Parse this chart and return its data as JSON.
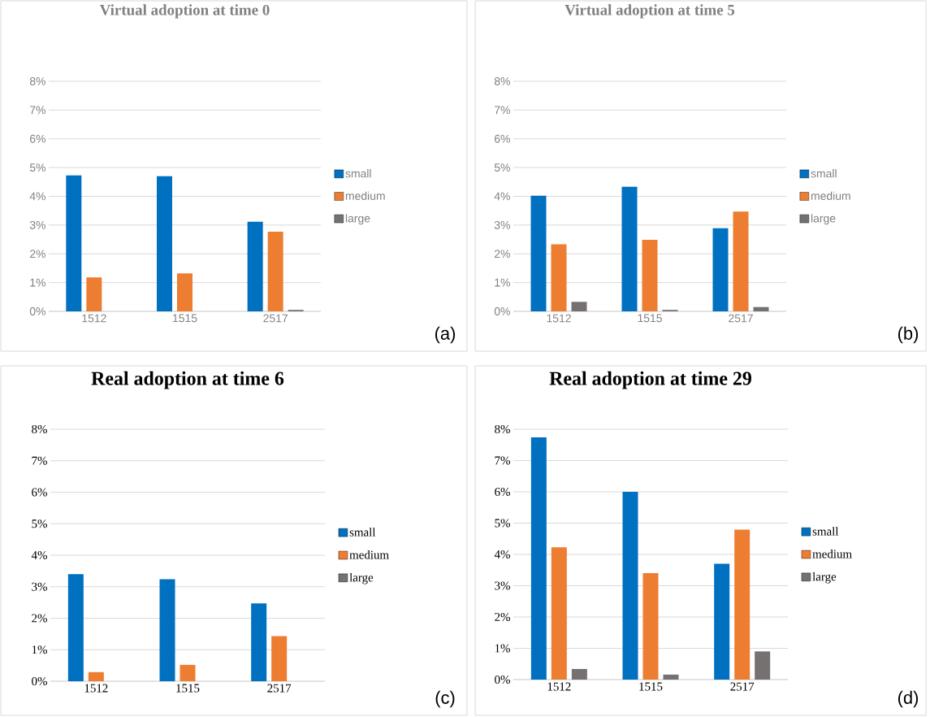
{
  "chart_data": [
    {
      "type": "bar",
      "title": "Virtual adoption at time 0",
      "categories": [
        "1512",
        "1515",
        "2517"
      ],
      "series": [
        {
          "name": "small",
          "color": "#0070c0",
          "values": [
            4.73,
            4.7,
            3.12
          ]
        },
        {
          "name": "medium",
          "color": "#ed7d31",
          "values": [
            1.18,
            1.32,
            2.77
          ]
        },
        {
          "name": "large",
          "color": "#767171",
          "values": [
            0,
            0,
            0.05
          ]
        }
      ],
      "ylim": [
        0,
        8
      ],
      "yticks": [
        {
          "value": 0,
          "label": "0%"
        },
        {
          "value": 1,
          "label": "1%"
        },
        {
          "value": 2,
          "label": "2%"
        },
        {
          "value": 3,
          "label": "3%"
        },
        {
          "value": 4,
          "label": "4%"
        },
        {
          "value": 5,
          "label": "5%"
        },
        {
          "value": 6,
          "label": "6%"
        },
        {
          "value": 7,
          "label": "7%"
        },
        {
          "value": 8,
          "label": "8%"
        }
      ],
      "grid": "y",
      "legend": "right",
      "annotations": [
        "(a)"
      ]
    },
    {
      "type": "bar",
      "title": "Virtual adoption at time 5",
      "categories": [
        "1512",
        "1515",
        "2517"
      ],
      "series": [
        {
          "name": "small",
          "color": "#0070c0",
          "values": [
            4.02,
            4.33,
            2.89
          ]
        },
        {
          "name": "medium",
          "color": "#ed7d31",
          "values": [
            2.33,
            2.49,
            3.47
          ]
        },
        {
          "name": "large",
          "color": "#767171",
          "values": [
            0.33,
            0.05,
            0.15
          ]
        }
      ],
      "ylim": [
        0,
        8
      ],
      "yticks": [
        {
          "value": 0,
          "label": "0%"
        },
        {
          "value": 1,
          "label": "1%"
        },
        {
          "value": 2,
          "label": "2%"
        },
        {
          "value": 3,
          "label": "3%"
        },
        {
          "value": 4,
          "label": "4%"
        },
        {
          "value": 5,
          "label": "5%"
        },
        {
          "value": 6,
          "label": "6%"
        },
        {
          "value": 7,
          "label": "7%"
        },
        {
          "value": 8,
          "label": "8%"
        }
      ],
      "grid": "y",
      "legend": "right",
      "annotations": [
        "(b)"
      ]
    },
    {
      "type": "bar",
      "title": "Real adoption at time 6",
      "categories": [
        "1512",
        "1515",
        "2517"
      ],
      "series": [
        {
          "name": "small",
          "color": "#0070c0",
          "values": [
            3.4,
            3.24,
            2.47
          ]
        },
        {
          "name": "medium",
          "color": "#ed7d31",
          "values": [
            0.29,
            0.52,
            1.43
          ]
        },
        {
          "name": "large",
          "color": "#767171",
          "values": [
            0,
            0,
            0
          ]
        }
      ],
      "ylim": [
        0,
        8
      ],
      "yticks": [
        {
          "value": 0,
          "label": "0%"
        },
        {
          "value": 1,
          "label": "1%"
        },
        {
          "value": 2,
          "label": "2%"
        },
        {
          "value": 3,
          "label": "3%"
        },
        {
          "value": 4,
          "label": "4%"
        },
        {
          "value": 5,
          "label": "5%"
        },
        {
          "value": 6,
          "label": "6%"
        },
        {
          "value": 7,
          "label": "7%"
        },
        {
          "value": 8,
          "label": "8%"
        }
      ],
      "grid": "y",
      "legend": "right",
      "annotations": [
        "(c)"
      ]
    },
    {
      "type": "bar",
      "title": "Real adoption at time 29",
      "categories": [
        "1512",
        "1515",
        "2517"
      ],
      "series": [
        {
          "name": "small",
          "color": "#0070c0",
          "values": [
            7.74,
            6.0,
            3.7
          ]
        },
        {
          "name": "medium",
          "color": "#ed7d31",
          "values": [
            4.23,
            3.4,
            4.79
          ]
        },
        {
          "name": "large",
          "color": "#767171",
          "values": [
            0.34,
            0.16,
            0.9
          ]
        }
      ],
      "ylim": [
        0,
        8
      ],
      "yticks": [
        {
          "value": 0,
          "label": "0%"
        },
        {
          "value": 1,
          "label": "1%"
        },
        {
          "value": 2,
          "label": "2%"
        },
        {
          "value": 3,
          "label": "3%"
        },
        {
          "value": 4,
          "label": "4%"
        },
        {
          "value": 5,
          "label": "5%"
        },
        {
          "value": 6,
          "label": "6%"
        },
        {
          "value": 7,
          "label": "7%"
        },
        {
          "value": 8,
          "label": "8%"
        }
      ],
      "grid": "y",
      "legend": "right",
      "annotations": [
        "(d)"
      ]
    }
  ]
}
